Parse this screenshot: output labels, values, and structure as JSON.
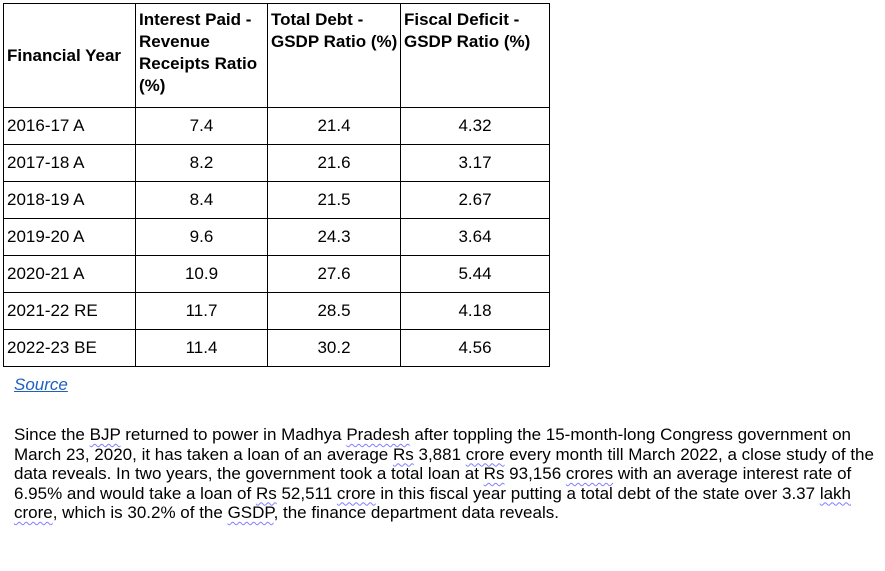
{
  "table": {
    "headers": [
      "Financial Year",
      "Interest Paid - Revenue Receipts Ratio (%)",
      "Total Debt - GSDP Ratio (%)",
      "Fiscal Deficit - GSDP Ratio (%)"
    ],
    "rows": [
      {
        "year": "2016-17 A",
        "interest": "7.4",
        "debt": "21.4",
        "deficit": "4.32"
      },
      {
        "year": "2017-18 A",
        "interest": "8.2",
        "debt": "21.6",
        "deficit": "3.17"
      },
      {
        "year": "2018-19 A",
        "interest": "8.4",
        "debt": "21.5",
        "deficit": "2.67"
      },
      {
        "year": "2019-20 A",
        "interest": "9.6",
        "debt": "24.3",
        "deficit": "3.64"
      },
      {
        "year": "2020-21 A",
        "interest": "10.9",
        "debt": "27.6",
        "deficit": "5.44"
      },
      {
        "year": "2021-22 RE",
        "interest": "11.7",
        "debt": "28.5",
        "deficit": "4.18"
      },
      {
        "year": "2022-23 BE",
        "interest": "11.4",
        "debt": "30.2",
        "deficit": "4.56"
      }
    ]
  },
  "source_link": "Source",
  "paragraph": "Since the BJP returned to power in Madhya Pradesh after toppling the 15-month-long Congress government on March 23, 2020, it has taken a loan of an average Rs 3,881 crore every month till March 2022, a close study of the data reveals. In two years, the government took a total loan at Rs 93,156 crores with an average interest rate of 6.95% and would take a loan of Rs 52,511 crore in this fiscal year putting a total debt of the state over 3.37 lakh crore, which is 30.2% of the GSDP, the finance department data reveals.",
  "colors": {
    "link": "#1f5fbf",
    "squiggle": "#7f7fff",
    "border": "#000000"
  }
}
